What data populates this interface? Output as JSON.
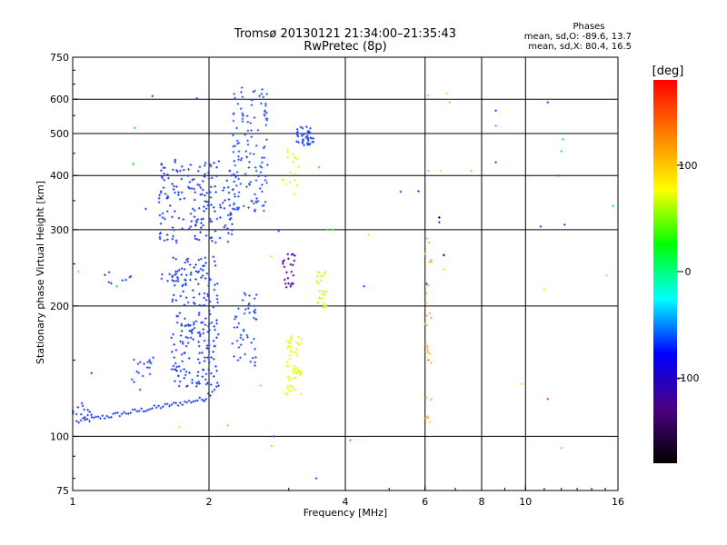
{
  "chart_data": {
    "type": "scatter",
    "title": "Tromsø 20130121 21:34:00–21:35:43",
    "subtitle": "RwPretec (8p)",
    "stats_title": "Phases",
    "stats_line1": "mean, sd,O: -89.6, 13.7",
    "stats_line2": "mean, sd,X:  80.4, 16.5",
    "xlabel": "Frequency [MHz]",
    "ylabel": "Stationary phase Virtual Height [km]",
    "xscale": "log",
    "yscale": "log",
    "xlim": [
      1,
      16
    ],
    "ylim": [
      75,
      750
    ],
    "xticks": [
      1,
      2,
      4,
      6,
      8,
      10,
      16
    ],
    "yticks": [
      75,
      100,
      200,
      300,
      400,
      500,
      600,
      750
    ],
    "xgrid": [
      2,
      4,
      6,
      8,
      10
    ],
    "ygrid": [
      100,
      200,
      300,
      400,
      500,
      600
    ],
    "colorbar": {
      "label": "[deg]",
      "range": [
        -180,
        180
      ],
      "ticks": [
        -100,
        0,
        100
      ],
      "colors": [
        "#000000",
        "#4b0082",
        "#0000ff",
        "#00ffff",
        "#00ff00",
        "#ffff00",
        "#ff8000",
        "#ff0000"
      ]
    },
    "clusters": [
      {
        "kind": "line",
        "f_range": [
          1.02,
          1.95
        ],
        "h_range": [
          108,
          122
        ],
        "n": 60,
        "spread_h": 1.5,
        "color": "#1f3fff"
      },
      {
        "kind": "line",
        "f_range": [
          1.95,
          2.1
        ],
        "h_range": [
          122,
          132
        ],
        "n": 8,
        "spread_h": 2,
        "color": "#1f3fff"
      },
      {
        "kind": "blob",
        "f_range": [
          1.0,
          1.1
        ],
        "h_range": [
          105,
          120
        ],
        "n": 14,
        "color": "#2040ff"
      },
      {
        "kind": "blob",
        "f_range": [
          1.35,
          1.55
        ],
        "h_range": [
          128,
          152
        ],
        "n": 18,
        "color": "#2850ff"
      },
      {
        "kind": "blob",
        "f_range": [
          1.65,
          2.1
        ],
        "h_range": [
          130,
          260
        ],
        "n": 220,
        "color": "#1f3fff"
      },
      {
        "kind": "blob",
        "f_range": [
          2.25,
          2.55
        ],
        "h_range": [
          145,
          215
        ],
        "n": 50,
        "color": "#2a50ff"
      },
      {
        "kind": "blob",
        "f_range": [
          1.55,
          2.3
        ],
        "h_range": [
          280,
          440
        ],
        "n": 190,
        "color": "#1f3fff"
      },
      {
        "kind": "blob",
        "f_range": [
          2.25,
          2.7
        ],
        "h_range": [
          330,
          640
        ],
        "n": 130,
        "color": "#2e58ff"
      },
      {
        "kind": "blob",
        "f_range": [
          3.1,
          3.4
        ],
        "h_range": [
          470,
          520
        ],
        "n": 40,
        "color": "#2244ff"
      },
      {
        "kind": "blob",
        "f_range": [
          2.9,
          3.15
        ],
        "h_range": [
          360,
          470
        ],
        "n": 18,
        "color": "#d8ff20"
      },
      {
        "kind": "blob",
        "f_range": [
          2.95,
          3.2
        ],
        "h_range": [
          125,
          175
        ],
        "n": 60,
        "color": "#e6ff10"
      },
      {
        "kind": "blob",
        "f_range": [
          3.45,
          3.65
        ],
        "h_range": [
          198,
          240
        ],
        "n": 28,
        "color": "#c8ff20"
      },
      {
        "kind": "blob",
        "f_range": [
          2.9,
          3.1
        ],
        "h_range": [
          220,
          265
        ],
        "n": 24,
        "color": "#5a00b8"
      },
      {
        "kind": "blob",
        "f_range": [
          6.0,
          6.2
        ],
        "h_range": [
          110,
          300
        ],
        "n": 24,
        "color": "#ffb040"
      },
      {
        "kind": "blob",
        "f_range": [
          1.15,
          1.35
        ],
        "h_range": [
          225,
          240
        ],
        "n": 8,
        "color": "#2244ff"
      },
      {
        "kind": "blob",
        "f_range": [
          1.55,
          1.75
        ],
        "h_range": [
          228,
          238
        ],
        "n": 10,
        "color": "#2244ff"
      }
    ],
    "scatter": [
      [
        1.5,
        610,
        "#2040ff"
      ],
      [
        1.88,
        603,
        "#2040ff"
      ],
      [
        1.37,
        515,
        "#22ee22"
      ],
      [
        1.36,
        425,
        "#22ee22"
      ],
      [
        1.45,
        335,
        "#2040ff"
      ],
      [
        1.58,
        320,
        "#2040ff"
      ],
      [
        1.25,
        222,
        "#22ee22"
      ],
      [
        1.03,
        240,
        "#ffb040"
      ],
      [
        1.1,
        140,
        "#2040ff"
      ],
      [
        1.72,
        105,
        "#ffdd00"
      ],
      [
        2.2,
        106,
        "#ffb040"
      ],
      [
        2.78,
        100,
        "#2040ff"
      ],
      [
        2.75,
        95,
        "#ffb040"
      ],
      [
        2.6,
        131,
        "#ffb040"
      ],
      [
        2.85,
        298,
        "#2040ff"
      ],
      [
        2.75,
        260,
        "#ffdd00"
      ],
      [
        3.45,
        80,
        "#2040ff"
      ],
      [
        4.1,
        98,
        "#22ee22"
      ],
      [
        3.65,
        300,
        "#22ee22"
      ],
      [
        3.5,
        418,
        "#ff8800"
      ],
      [
        4.5,
        292,
        "#ffdd00"
      ],
      [
        4.4,
        222,
        "#2040ff"
      ],
      [
        5.3,
        367,
        "#2040ff"
      ],
      [
        5.8,
        368,
        "#2040ff"
      ],
      [
        6.1,
        612,
        "#ffb040"
      ],
      [
        6.7,
        618,
        "#ffdd00"
      ],
      [
        6.8,
        590,
        "#ffb040"
      ],
      [
        6.5,
        410,
        "#ffdd00"
      ],
      [
        6.1,
        410,
        "#ffb040"
      ],
      [
        6.45,
        320,
        "#000000"
      ],
      [
        6.45,
        312,
        "#2040ff"
      ],
      [
        6.6,
        262,
        "#000000"
      ],
      [
        6.6,
        243,
        "#ffdd00"
      ],
      [
        7.6,
        410,
        "#ffb040"
      ],
      [
        8.6,
        565,
        "#2040ff"
      ],
      [
        8.6,
        521,
        "#22ccff"
      ],
      [
        8.6,
        429,
        "#2040ff"
      ],
      [
        11.2,
        590,
        "#2040ff"
      ],
      [
        12.1,
        485,
        "#22ccff"
      ],
      [
        12.0,
        455,
        "#22ccff"
      ],
      [
        11.8,
        400,
        "#2040ff"
      ],
      [
        12.2,
        308,
        "#2040ff"
      ],
      [
        10.8,
        305,
        "#2040ff"
      ],
      [
        11.0,
        218,
        "#ffdd00"
      ],
      [
        15.6,
        340,
        "#22ccff"
      ],
      [
        15.1,
        235,
        "#ffdd00"
      ],
      [
        11.2,
        122,
        "#ff4000"
      ],
      [
        9.8,
        132,
        "#ffdd00"
      ],
      [
        12.0,
        94,
        "#ffb040"
      ],
      [
        6.15,
        108,
        "#ffdd00"
      ],
      [
        6.1,
        150,
        "#ff8800"
      ],
      [
        6.05,
        190,
        "#ffb040"
      ],
      [
        6.05,
        225,
        "#2040ff"
      ],
      [
        3.75,
        300,
        "#22ee22"
      ]
    ]
  }
}
